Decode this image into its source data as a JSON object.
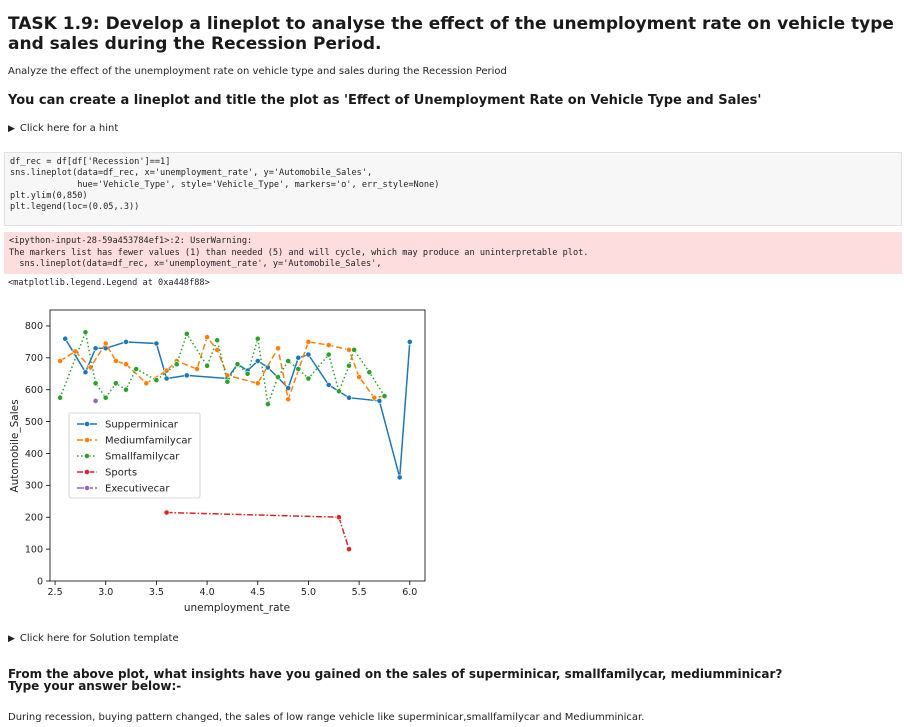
{
  "task_title": "TASK 1.9: Develop a lineplot to analyse the effect of the unemployment rate on vehicle type and sales during the Recession Period.",
  "description": "Analyze the effect of the unemployment rate on vehicle type and sales during the Recession Period",
  "instruction": "You can create a lineplot and title the plot as 'Effect of Unemployment Rate on Vehicle Type and Sales'",
  "hint_label": "Click here for a hint",
  "code_lines": [
    "df_rec = df[df['Recession']==1]",
    "sns.lineplot(data=df_rec, x='unemployment_rate', y='Automobile_Sales',",
    "             hue='Vehicle_Type', style='Vehicle_Type', markers='o', err_style=None)",
    "plt.ylim(0,850)",
    "plt.legend(loc=(0.05,.3))"
  ],
  "warning_lines": [
    "<ipython-input-28-59a453784ef1>:2: UserWarning:",
    "The markers list has fewer values (1) than needed (5) and will cycle, which may produce an uninterpretable plot.",
    "  sns.lineplot(data=df_rec, x='unemployment_rate', y='Automobile_Sales',"
  ],
  "output_text": "<matplotlib.legend.Legend at 0xa448f88>",
  "solution_label": "Click here for Solution template",
  "question_line1": "From the above plot, what insights have you gained on the sales of superminicar, smallfamilycar, mediumminicar?",
  "question_line2": "Type your answer below:-",
  "answer": "During recession, buying pattern changed, the sales of low range vehicle like superminicar,smallfamilycar and Mediumminicar.",
  "chart_data": {
    "type": "line",
    "title": "",
    "xlabel": "unemployment_rate",
    "ylabel": "Automobile_Sales",
    "xlim": [
      2.45,
      6.15
    ],
    "ylim": [
      0,
      850
    ],
    "xticks": [
      "2.5",
      "3.0",
      "3.5",
      "4.0",
      "4.5",
      "5.0",
      "5.5",
      "6.0"
    ],
    "yticks": [
      "0",
      "100",
      "200",
      "300",
      "400",
      "500",
      "600",
      "700",
      "800"
    ],
    "legend_position": "center-left",
    "series": [
      {
        "name": "Supperminicar",
        "color": "#1f77b4",
        "dash": "",
        "points": [
          [
            2.6,
            760
          ],
          [
            2.8,
            655
          ],
          [
            2.9,
            730
          ],
          [
            3.0,
            730
          ],
          [
            3.2,
            750
          ],
          [
            3.5,
            745
          ],
          [
            3.6,
            635
          ],
          [
            3.8,
            645
          ],
          [
            4.2,
            635
          ],
          [
            4.3,
            680
          ],
          [
            4.4,
            660
          ],
          [
            4.5,
            690
          ],
          [
            4.6,
            670
          ],
          [
            4.8,
            605
          ],
          [
            4.9,
            700
          ],
          [
            5.0,
            710
          ],
          [
            5.2,
            615
          ],
          [
            5.4,
            575
          ],
          [
            5.7,
            565
          ],
          [
            5.9,
            325
          ],
          [
            6.0,
            750
          ]
        ]
      },
      {
        "name": "Mediumfamilycar",
        "color": "#ff7f0e",
        "dash": "6,3",
        "points": [
          [
            2.55,
            690
          ],
          [
            2.7,
            720
          ],
          [
            2.85,
            670
          ],
          [
            3.0,
            745
          ],
          [
            3.1,
            690
          ],
          [
            3.2,
            680
          ],
          [
            3.4,
            620
          ],
          [
            3.6,
            660
          ],
          [
            3.7,
            690
          ],
          [
            3.9,
            665
          ],
          [
            4.0,
            765
          ],
          [
            4.1,
            725
          ],
          [
            4.2,
            645
          ],
          [
            4.5,
            620
          ],
          [
            4.7,
            730
          ],
          [
            4.8,
            570
          ],
          [
            5.0,
            750
          ],
          [
            5.2,
            740
          ],
          [
            5.4,
            725
          ],
          [
            5.5,
            640
          ],
          [
            5.65,
            575
          ],
          [
            5.75,
            580
          ]
        ]
      },
      {
        "name": "Smallfamilycar",
        "color": "#2ca02c",
        "dash": "1.5,2.5",
        "points": [
          [
            2.55,
            575
          ],
          [
            2.8,
            780
          ],
          [
            2.9,
            620
          ],
          [
            3.0,
            575
          ],
          [
            3.1,
            620
          ],
          [
            3.2,
            600
          ],
          [
            3.3,
            665
          ],
          [
            3.5,
            630
          ],
          [
            3.7,
            680
          ],
          [
            3.8,
            775
          ],
          [
            4.0,
            675
          ],
          [
            4.1,
            755
          ],
          [
            4.2,
            625
          ],
          [
            4.3,
            680
          ],
          [
            4.4,
            650
          ],
          [
            4.5,
            760
          ],
          [
            4.6,
            555
          ],
          [
            4.7,
            640
          ],
          [
            4.8,
            690
          ],
          [
            4.9,
            665
          ],
          [
            5.0,
            635
          ],
          [
            5.2,
            710
          ],
          [
            5.3,
            595
          ],
          [
            5.4,
            675
          ],
          [
            5.45,
            725
          ],
          [
            5.6,
            655
          ],
          [
            5.75,
            580
          ]
        ]
      },
      {
        "name": "Sports",
        "color": "#d62728",
        "dash": "6,2,1.5,2",
        "points": [
          [
            3.6,
            215
          ],
          [
            5.3,
            200
          ],
          [
            5.4,
            100
          ]
        ]
      },
      {
        "name": "Executivecar",
        "color": "#9467bd",
        "dash": "7,2",
        "points": [
          [
            2.9,
            565
          ]
        ]
      }
    ]
  }
}
